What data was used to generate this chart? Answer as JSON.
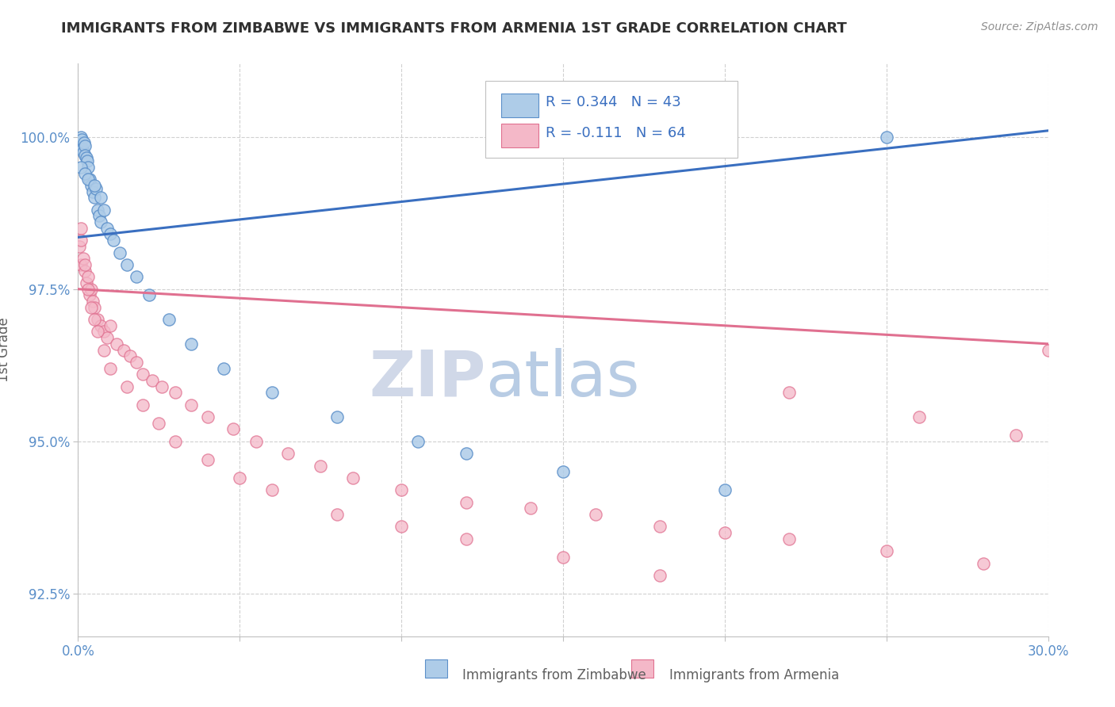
{
  "title": "IMMIGRANTS FROM ZIMBABWE VS IMMIGRANTS FROM ARMENIA 1ST GRADE CORRELATION CHART",
  "source": "Source: ZipAtlas.com",
  "ylabel": "1st Grade",
  "xlim": [
    0.0,
    30.0
  ],
  "ylim": [
    91.8,
    101.2
  ],
  "yticks": [
    92.5,
    95.0,
    97.5,
    100.0
  ],
  "xtick_labels": [
    "0.0%",
    "",
    "",
    "",
    "",
    "",
    "30.0%"
  ],
  "ytick_labels": [
    "92.5%",
    "95.0%",
    "97.5%",
    "100.0%"
  ],
  "blue_label": "Immigrants from Zimbabwe",
  "pink_label": "Immigrants from Armenia",
  "blue_color": "#aecce8",
  "pink_color": "#f4b8c8",
  "blue_edge_color": "#5b8fc9",
  "pink_edge_color": "#e07090",
  "blue_line_color": "#3a6fc0",
  "pink_line_color": "#e07090",
  "r_blue": 0.344,
  "n_blue": 43,
  "r_pink": -0.111,
  "n_pink": 64,
  "blue_x": [
    0.05,
    0.08,
    0.1,
    0.12,
    0.14,
    0.16,
    0.18,
    0.2,
    0.22,
    0.25,
    0.28,
    0.3,
    0.35,
    0.4,
    0.45,
    0.5,
    0.55,
    0.6,
    0.65,
    0.7,
    0.8,
    0.9,
    1.0,
    1.1,
    1.3,
    1.5,
    1.8,
    2.2,
    2.8,
    3.5,
    4.5,
    6.0,
    8.0,
    10.5,
    12.0,
    15.0,
    20.0,
    25.0,
    0.1,
    0.2,
    0.3,
    0.5,
    0.7
  ],
  "blue_y": [
    99.9,
    100.0,
    99.85,
    99.95,
    99.8,
    99.75,
    99.9,
    99.85,
    99.7,
    99.65,
    99.6,
    99.5,
    99.3,
    99.2,
    99.1,
    99.0,
    99.15,
    98.8,
    98.7,
    98.6,
    98.8,
    98.5,
    98.4,
    98.3,
    98.1,
    97.9,
    97.7,
    97.4,
    97.0,
    96.6,
    96.2,
    95.8,
    95.4,
    95.0,
    94.8,
    94.5,
    94.2,
    100.0,
    99.5,
    99.4,
    99.3,
    99.2,
    99.0
  ],
  "pink_x": [
    0.05,
    0.08,
    0.1,
    0.15,
    0.2,
    0.25,
    0.3,
    0.35,
    0.4,
    0.45,
    0.5,
    0.6,
    0.7,
    0.8,
    0.9,
    1.0,
    1.2,
    1.4,
    1.6,
    1.8,
    2.0,
    2.3,
    2.6,
    3.0,
    3.5,
    4.0,
    4.8,
    5.5,
    6.5,
    7.5,
    8.5,
    10.0,
    12.0,
    14.0,
    16.0,
    18.0,
    20.0,
    22.0,
    25.0,
    28.0,
    30.0,
    0.1,
    0.2,
    0.3,
    0.4,
    0.5,
    0.6,
    0.8,
    1.0,
    1.5,
    2.0,
    2.5,
    3.0,
    4.0,
    5.0,
    6.0,
    8.0,
    10.0,
    12.0,
    15.0,
    18.0,
    22.0,
    26.0,
    29.0
  ],
  "pink_y": [
    98.2,
    98.5,
    97.9,
    98.0,
    97.8,
    97.6,
    97.7,
    97.4,
    97.5,
    97.3,
    97.2,
    97.0,
    96.9,
    96.8,
    96.7,
    96.9,
    96.6,
    96.5,
    96.4,
    96.3,
    96.1,
    96.0,
    95.9,
    95.8,
    95.6,
    95.4,
    95.2,
    95.0,
    94.8,
    94.6,
    94.4,
    94.2,
    94.0,
    93.9,
    93.8,
    93.6,
    93.5,
    93.4,
    93.2,
    93.0,
    96.5,
    98.3,
    97.9,
    97.5,
    97.2,
    97.0,
    96.8,
    96.5,
    96.2,
    95.9,
    95.6,
    95.3,
    95.0,
    94.7,
    94.4,
    94.2,
    93.8,
    93.6,
    93.4,
    93.1,
    92.8,
    95.8,
    95.4,
    95.1
  ],
  "blue_trend_x": [
    0.0,
    30.0
  ],
  "blue_trend_y": [
    98.35,
    100.1
  ],
  "pink_trend_x": [
    0.0,
    30.0
  ],
  "pink_trend_y": [
    97.5,
    96.6
  ],
  "watermark_zip": "ZIP",
  "watermark_atlas": "atlas",
  "watermark_zip_color": "#d0d8e8",
  "watermark_atlas_color": "#b8cce4",
  "background_color": "#ffffff",
  "grid_color": "#d0d0d0",
  "tick_color": "#5b8fc9",
  "title_color": "#303030",
  "title_fontsize": 13,
  "axis_label_color": "#606060",
  "legend_r_color": "#3a6fc0",
  "legend_n_color": "#3a6fc0"
}
